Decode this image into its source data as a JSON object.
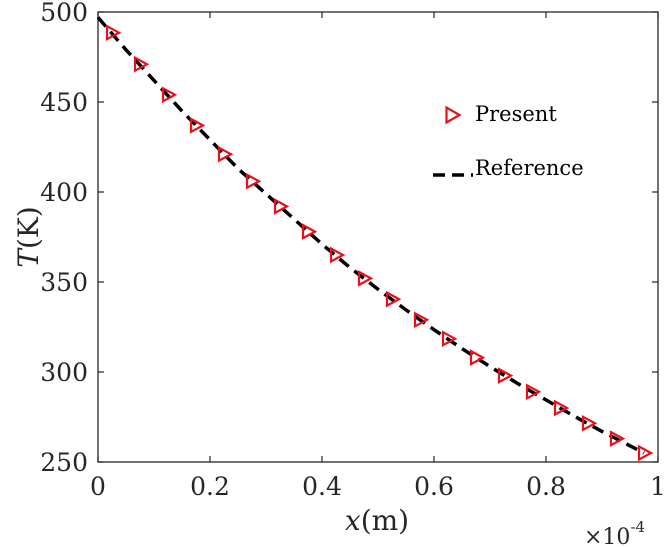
{
  "chart_data": {
    "type": "line",
    "title": "",
    "xlabel": {
      "var": "x",
      "unit": "(m)"
    },
    "ylabel": {
      "var": "T",
      "unit": "(K)"
    },
    "x_exponent": {
      "base": "×10",
      "power": "-4"
    },
    "xlim": [
      0,
      1
    ],
    "ylim": [
      250,
      500
    ],
    "xticks": [
      0,
      0.2,
      0.4,
      0.6,
      0.8,
      1
    ],
    "xtick_labels": [
      "0",
      "0.2",
      "0.4",
      "0.6",
      "0.8",
      "1"
    ],
    "yticks": [
      250,
      300,
      350,
      400,
      450,
      500
    ],
    "ytick_labels": [
      "250",
      "300",
      "350",
      "400",
      "450",
      "500"
    ],
    "grid": false,
    "legend_position": "top-right",
    "series": [
      {
        "name": "Present",
        "style": "triangle-right markers",
        "color": "#e8101a",
        "x": [
          0.025,
          0.075,
          0.125,
          0.175,
          0.225,
          0.275,
          0.325,
          0.375,
          0.425,
          0.475,
          0.525,
          0.575,
          0.625,
          0.675,
          0.725,
          0.775,
          0.825,
          0.875,
          0.925,
          0.975
        ],
        "y": [
          488.5,
          471,
          454,
          437,
          421,
          406,
          392,
          378,
          365,
          352,
          340.5,
          329,
          318.5,
          308,
          298,
          289,
          280,
          271.5,
          263,
          255
        ]
      },
      {
        "name": "Reference",
        "style": "dashed line",
        "color": "#000000",
        "x": [
          0,
          0.05,
          0.1,
          0.15,
          0.2,
          0.25,
          0.3,
          0.35,
          0.4,
          0.45,
          0.5,
          0.55,
          0.6,
          0.65,
          0.7,
          0.75,
          0.8,
          0.85,
          0.9,
          0.95,
          0.975
        ],
        "y": [
          497,
          479,
          462,
          445,
          429,
          413,
          399,
          385,
          371,
          358,
          346,
          334.5,
          323.5,
          313,
          303,
          293.5,
          284.5,
          275.5,
          267,
          259,
          255
        ]
      }
    ]
  }
}
